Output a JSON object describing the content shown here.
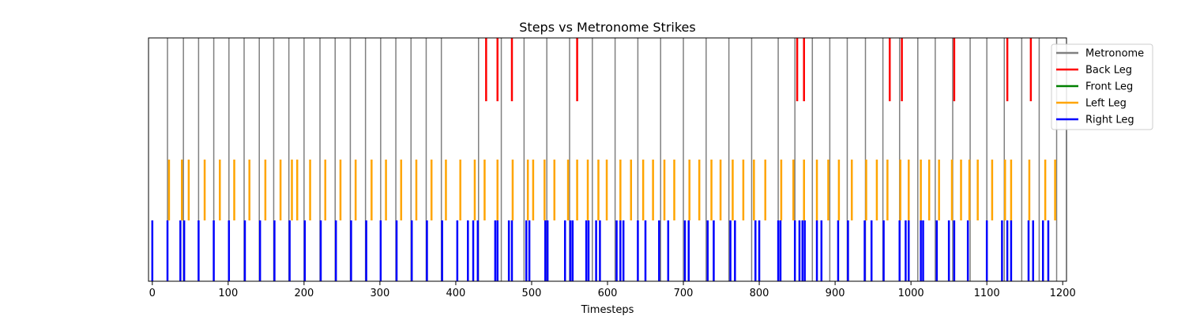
{
  "chart_data": {
    "type": "event-line",
    "title": "Steps vs Metronome Strikes",
    "xlabel": "Timesteps",
    "ylabel": "",
    "xlim": [
      -5,
      1205
    ],
    "xticks": [
      0,
      100,
      200,
      300,
      400,
      500,
      600,
      700,
      800,
      900,
      1000,
      1100,
      1200
    ],
    "grid": false,
    "legend_position": "top-right",
    "series": [
      {
        "name": "Metronome",
        "color": "#808080",
        "band": [
          0.0,
          1.0
        ],
        "x": [
          20,
          41,
          61,
          81,
          101,
          121,
          141,
          160,
          180,
          200,
          221,
          241,
          261,
          281,
          301,
          321,
          341,
          361,
          381,
          430,
          460,
          490,
          520,
          550,
          580,
          610,
          640,
          670,
          700,
          730,
          760,
          790,
          825,
          847,
          870,
          893,
          916,
          940,
          963,
          985,
          1009,
          1032,
          1055,
          1078,
          1100,
          1123,
          1146,
          1169,
          1192
        ]
      },
      {
        "name": "Back Leg",
        "color": "#ff0000",
        "band": [
          0.74,
          1.0
        ],
        "x": [
          440,
          455,
          474,
          560,
          850,
          859,
          972,
          988,
          1057,
          1127,
          1158
        ]
      },
      {
        "name": "Front Leg",
        "color": "#008000",
        "band": [
          0.25,
          0.5
        ],
        "x": []
      },
      {
        "name": "Left Leg",
        "color": "#ffa500",
        "band": [
          0.25,
          0.5
        ],
        "x": [
          22,
          39,
          48,
          69,
          89,
          108,
          128,
          149,
          169,
          184,
          191,
          208,
          228,
          248,
          268,
          289,
          308,
          328,
          348,
          368,
          387,
          406,
          425,
          438,
          455,
          475,
          495,
          502,
          517,
          530,
          548,
          560,
          574,
          588,
          599,
          617,
          631,
          647,
          660,
          675,
          688,
          708,
          721,
          737,
          749,
          765,
          779,
          793,
          808,
          829,
          845,
          859,
          876,
          891,
          905,
          922,
          941,
          955,
          969,
          986,
          997,
          1013,
          1024,
          1037,
          1054,
          1066,
          1077,
          1088,
          1107,
          1124,
          1132,
          1156,
          1177,
          1190
        ]
      },
      {
        "name": "Right Leg",
        "color": "#0000ff",
        "band": [
          0.0,
          0.25
        ],
        "x": [
          0,
          20,
          37,
          42,
          61,
          81,
          101,
          122,
          142,
          161,
          181,
          201,
          222,
          242,
          262,
          282,
          301,
          322,
          342,
          362,
          382,
          402,
          416,
          423,
          429,
          452,
          455,
          470,
          474,
          493,
          497,
          518,
          521,
          544,
          551,
          554,
          572,
          575,
          585,
          590,
          612,
          617,
          621,
          640,
          650,
          668,
          680,
          702,
          707,
          732,
          740,
          762,
          768,
          795,
          800,
          825,
          828,
          847,
          853,
          857,
          860,
          876,
          882,
          904,
          917,
          939,
          948,
          964,
          985,
          993,
          997,
          1013,
          1016,
          1034,
          1050,
          1057,
          1075,
          1100,
          1120,
          1127,
          1132,
          1155,
          1161,
          1174,
          1181
        ]
      }
    ]
  }
}
